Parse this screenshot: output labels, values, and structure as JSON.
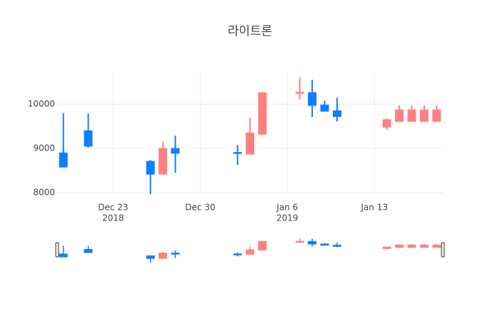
{
  "chart_data": {
    "type": "candlestick",
    "title": "라이트론",
    "x": [
      "2018-12-19",
      "2018-12-21",
      "2018-12-26",
      "2018-12-27",
      "2018-12-28",
      "2019-01-02",
      "2019-01-03",
      "2019-01-04",
      "2019-01-07",
      "2019-01-08",
      "2019-01-09",
      "2019-01-10",
      "2019-01-14",
      "2019-01-15",
      "2019-01-16",
      "2019-01-17",
      "2019-01-18"
    ],
    "open": [
      8900,
      9400,
      8710,
      8420,
      9000,
      8910,
      8870,
      9320,
      10240,
      10260,
      9980,
      9850,
      9480,
      9610,
      9610,
      9610,
      9610
    ],
    "high": [
      9800,
      9790,
      8740,
      9150,
      9290,
      9080,
      9690,
      10260,
      10600,
      10550,
      10080,
      10150,
      9680,
      9970,
      9970,
      9970,
      9970
    ],
    "low": [
      8580,
      9020,
      7970,
      8420,
      8450,
      8630,
      8870,
      9320,
      10110,
      9710,
      9840,
      9610,
      9420,
      9610,
      9610,
      9610,
      9610
    ],
    "close": [
      8580,
      9050,
      8420,
      9000,
      8890,
      8890,
      9350,
      10260,
      10270,
      9970,
      9840,
      9720,
      9650,
      9870,
      9870,
      9870,
      9870
    ],
    "increasing_color": "#ff8080",
    "decreasing_color": "#0f7ffb",
    "xlim": [
      "2018-12-18 12:00",
      "2019-01-18 12:00"
    ],
    "xticks": [
      {
        "value": "2018-12-23",
        "label": "Dec 23",
        "sublabel": "2018"
      },
      {
        "value": "2018-12-30",
        "label": "Dec 30"
      },
      {
        "value": "2019-01-06",
        "label": "Jan 6",
        "sublabel": "2019"
      },
      {
        "value": "2019-01-13",
        "label": "Jan 13"
      }
    ],
    "ylim": [
      7970,
      10740
    ],
    "yticks": [
      8000,
      9000,
      10000
    ],
    "grid": true,
    "rangeslider": true
  }
}
